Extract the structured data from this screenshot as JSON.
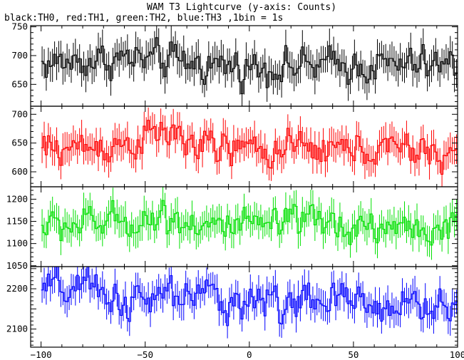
{
  "title": "WAM T3 Lightcurve (y-axis: Counts)",
  "subtitle": "black:TH0, red:TH1, green:TH2, blue:TH3 ,1bin = 1s",
  "chart_data": {
    "type": "line",
    "title": "WAM T3 Lightcurve (y-axis: Counts)",
    "subtitle": "black:TH0, red:TH1, green:TH2, blue:TH3 ,1bin = 1s",
    "ylabel": "Counts",
    "style": "histogram step with error bars",
    "x_range": [
      -100,
      100
    ],
    "xlim": [
      -105,
      100
    ],
    "x_ticks": [
      -100,
      -50,
      0,
      50,
      100
    ],
    "shared_x": true,
    "panels": [
      {
        "series_name": "TH0",
        "color": "#000000",
        "ylim": [
          612,
          752
        ],
        "y_ticks": [
          650,
          700,
          750
        ],
        "mean": 685,
        "amplitude": 22,
        "err": 26,
        "trend": [
          [
            -100,
            685
          ],
          [
            -60,
            695
          ],
          [
            -40,
            690
          ],
          [
            0,
            680
          ],
          [
            50,
            683
          ],
          [
            100,
            683
          ]
        ]
      },
      {
        "series_name": "TH1",
        "color": "#ff0000",
        "ylim": [
          574,
          714
        ],
        "y_ticks": [
          600,
          650,
          700
        ],
        "mean": 640,
        "amplitude": 22,
        "err": 25,
        "trend": [
          [
            -100,
            638
          ],
          [
            -60,
            648
          ],
          [
            -40,
            668
          ],
          [
            -20,
            640
          ],
          [
            10,
            638
          ],
          [
            60,
            640
          ],
          [
            100,
            630
          ]
        ]
      },
      {
        "series_name": "TH2",
        "color": "#00e000",
        "ylim": [
          1048,
          1228
        ],
        "y_ticks": [
          1050,
          1100,
          1150,
          1200
        ],
        "mean": 1140,
        "amplitude": 28,
        "err": 32,
        "trend": [
          [
            -100,
            1138
          ],
          [
            -60,
            1150
          ],
          [
            -40,
            1160
          ],
          [
            -10,
            1135
          ],
          [
            30,
            1145
          ],
          [
            100,
            1130
          ]
        ]
      },
      {
        "series_name": "TH3",
        "color": "#0000ff",
        "ylim": [
          2055,
          2255
        ],
        "y_ticks": [
          2100,
          2200
        ],
        "mean": 2180,
        "amplitude": 35,
        "err": 35,
        "trend": [
          [
            -100,
            2195
          ],
          [
            -80,
            2200
          ],
          [
            -50,
            2160
          ],
          [
            -40,
            2185
          ],
          [
            0,
            2170
          ],
          [
            40,
            2165
          ],
          [
            80,
            2160
          ],
          [
            100,
            2150
          ]
        ]
      }
    ]
  }
}
